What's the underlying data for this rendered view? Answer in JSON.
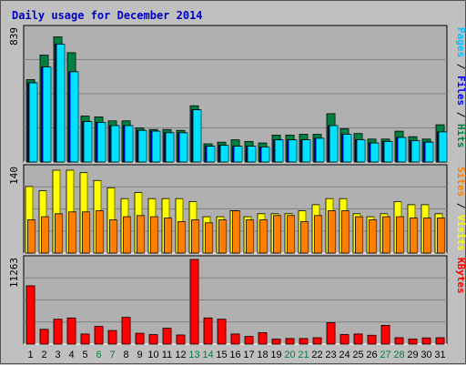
{
  "chart_data": {
    "type": "bar",
    "title": "Daily usage for December 2014",
    "days": [
      "1",
      "2",
      "3",
      "4",
      "5",
      "6",
      "7",
      "8",
      "9",
      "10",
      "11",
      "12",
      "13",
      "14",
      "15",
      "16",
      "17",
      "18",
      "19",
      "20",
      "21",
      "22",
      "23",
      "24",
      "25",
      "26",
      "27",
      "28",
      "29",
      "30",
      "31"
    ],
    "weekend_days": [
      "6",
      "7",
      "13",
      "14",
      "20",
      "21",
      "27",
      "28"
    ],
    "panels": [
      {
        "name": "hits-files-pages",
        "ymax_label": "839",
        "ymax": 839,
        "series": [
          {
            "name": "Hits",
            "color": "#008040",
            "values": [
              520,
              675,
              790,
              690,
              290,
              285,
              260,
              260,
              215,
              205,
              205,
              200,
              355,
              115,
              125,
              140,
              130,
              120,
              170,
              170,
              175,
              175,
              305,
              210,
              180,
              145,
              145,
              195,
              160,
              145,
              235
            ]
          },
          {
            "name": "Files",
            "color": "#0000ff",
            "values": [
              500,
              600,
              745,
              570,
              255,
              250,
              230,
              230,
              200,
              195,
              185,
              185,
              330,
              100,
              105,
              100,
              100,
              95,
              140,
              140,
              140,
              150,
              230,
              175,
              140,
              120,
              130,
              155,
              135,
              125,
              190
            ]
          },
          {
            "name": "Pages",
            "color": "#00e0ff",
            "values": [
              500,
              600,
              745,
              570,
              255,
              250,
              230,
              230,
              200,
              195,
              185,
              185,
              330,
              100,
              105,
              100,
              100,
              95,
              140,
              140,
              140,
              150,
              230,
              175,
              140,
              120,
              130,
              155,
              135,
              125,
              190
            ]
          }
        ],
        "side_labels": [
          {
            "text": "Pages",
            "color": "#00c0ff"
          },
          {
            "text": "Files",
            "color": "#0000ff"
          },
          {
            "text": "Hits",
            "color": "#008040"
          }
        ]
      },
      {
        "name": "visits-sites",
        "ymax_label": "140",
        "ymax": 140,
        "series": [
          {
            "name": "Visits",
            "color": "#ffff00",
            "values": [
              110,
              103,
              137,
              137,
              133,
              120,
              108,
              90,
              100,
              90,
              90,
              90,
              85,
              60,
              60,
              70,
              60,
              65,
              65,
              65,
              70,
              80,
              90,
              90,
              65,
              60,
              65,
              85,
              80,
              80,
              65
            ]
          },
          {
            "name": "Sites",
            "color": "#ff8000",
            "values": [
              55,
              60,
              65,
              68,
              68,
              70,
              55,
              60,
              62,
              60,
              58,
              52,
              55,
              50,
              55,
              70,
              55,
              55,
              62,
              62,
              52,
              62,
              70,
              70,
              60,
              55,
              60,
              60,
              58,
              58,
              58
            ]
          }
        ],
        "side_labels": [
          {
            "text": "Sites",
            "color": "#ff8000"
          },
          {
            "text": "Visits",
            "color": "#ffff00"
          }
        ]
      },
      {
        "name": "kbytes",
        "ymax_label": "11263",
        "ymax": 11263,
        "series": [
          {
            "name": "KBytes",
            "color": "#ff0000",
            "values": [
              7750,
              1960,
              3310,
              3480,
              1350,
              2350,
              1800,
              3560,
              1440,
              1260,
              2110,
              1210,
              11263,
              3480,
              3310,
              1350,
              1020,
              1520,
              650,
              740,
              740,
              850,
              2850,
              1270,
              1350,
              1180,
              2500,
              850,
              680,
              820,
              850
            ]
          }
        ],
        "side_labels": [
          {
            "text": "KBytes",
            "color": "#ff0000"
          }
        ]
      }
    ]
  },
  "colors": {
    "background": "#c0c0c0",
    "plot": "#b0b0b0",
    "grid": "#808080",
    "title": "#0000c0",
    "weekday_label": "#000000",
    "weekend_label": "#008040"
  }
}
